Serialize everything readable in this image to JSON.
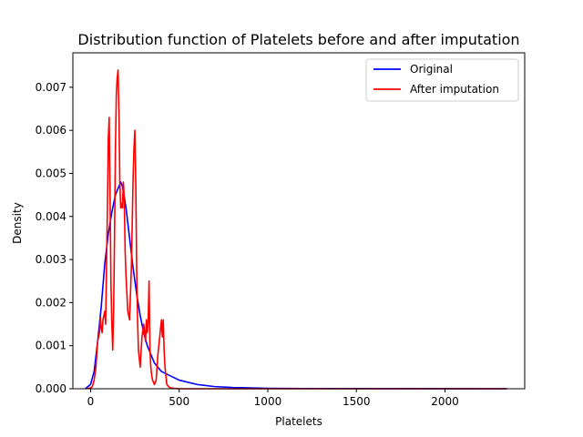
{
  "chart_data": {
    "type": "line",
    "title": "Distribution function of Platelets before and after imputation",
    "xlabel": "Platelets",
    "ylabel": "Density",
    "xlim": [
      -100,
      2450
    ],
    "ylim": [
      0,
      0.0078
    ],
    "xticks": [
      0,
      500,
      1000,
      1500,
      2000
    ],
    "xtick_labels": [
      "0",
      "500",
      "1000",
      "1500",
      "2000"
    ],
    "yticks": [
      0,
      0.001,
      0.002,
      0.003,
      0.004,
      0.005,
      0.006,
      0.007
    ],
    "ytick_labels": [
      "0.000",
      "0.001",
      "0.002",
      "0.003",
      "0.004",
      "0.005",
      "0.006",
      "0.007"
    ],
    "grid": false,
    "legend_position": "top-right",
    "series": [
      {
        "name": "Original",
        "color": "#0000ff",
        "x": [
          -30,
          0,
          20,
          40,
          60,
          80,
          100,
          120,
          140,
          160,
          170,
          180,
          200,
          220,
          240,
          260,
          280,
          300,
          320,
          340,
          360,
          380,
          400,
          450,
          500,
          600,
          700,
          800,
          1000,
          1200,
          1500,
          2000,
          2350
        ],
        "y": [
          0.0,
          0.0001,
          0.0004,
          0.0011,
          0.0019,
          0.0029,
          0.0036,
          0.0041,
          0.0045,
          0.0047,
          0.0048,
          0.0047,
          0.0042,
          0.0035,
          0.0028,
          0.0022,
          0.0017,
          0.0013,
          0.001,
          0.0008,
          0.0006,
          0.0005,
          0.0004,
          0.0003,
          0.0002,
          0.0001,
          5e-05,
          3e-05,
          1e-05,
          5e-06,
          3e-06,
          1e-06,
          0.0
        ]
      },
      {
        "name": "After imputation",
        "color": "#ff0000",
        "x": [
          -20,
          0,
          10,
          20,
          30,
          40,
          50,
          55,
          60,
          65,
          70,
          80,
          85,
          90,
          95,
          100,
          105,
          110,
          115,
          120,
          125,
          130,
          135,
          140,
          145,
          150,
          155,
          160,
          165,
          170,
          175,
          180,
          185,
          190,
          195,
          200,
          210,
          220,
          230,
          240,
          245,
          250,
          255,
          260,
          265,
          270,
          280,
          290,
          300,
          310,
          315,
          320,
          325,
          330,
          335,
          340,
          345,
          350,
          360,
          370,
          380,
          390,
          400,
          405,
          410,
          415,
          420,
          425,
          430,
          440,
          450,
          470,
          500,
          2350
        ],
        "y": [
          0.0,
          2e-05,
          5e-05,
          0.0002,
          0.0005,
          0.0011,
          0.0013,
          0.00165,
          0.0014,
          0.0013,
          0.0016,
          0.0018,
          0.0015,
          0.0029,
          0.0042,
          0.0058,
          0.0063,
          0.0045,
          0.0024,
          0.0015,
          0.0009,
          0.0018,
          0.0035,
          0.0055,
          0.0068,
          0.0072,
          0.0074,
          0.0064,
          0.0048,
          0.0042,
          0.0043,
          0.0042,
          0.0048,
          0.0044,
          0.0032,
          0.0026,
          0.0018,
          0.0016,
          0.0028,
          0.0049,
          0.0056,
          0.006,
          0.0048,
          0.0028,
          0.0016,
          0.0009,
          0.0005,
          0.0012,
          0.0015,
          0.0011,
          0.0016,
          0.0013,
          0.0016,
          0.0025,
          0.0009,
          0.0005,
          0.0003,
          0.0002,
          0.0001,
          0.0002,
          0.0008,
          0.0012,
          0.0016,
          0.0012,
          0.0016,
          0.0009,
          0.0005,
          0.0003,
          0.0001,
          5e-05,
          2e-05,
          1e-05,
          0.0,
          0.0
        ]
      }
    ]
  }
}
